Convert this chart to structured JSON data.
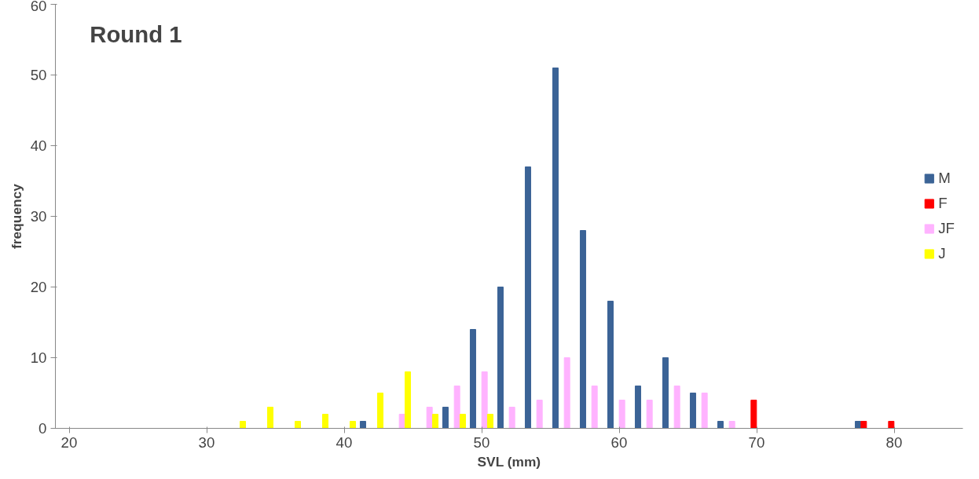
{
  "chart_data": {
    "type": "bar",
    "title": "Round 1",
    "xlabel": "SVL (mm)",
    "ylabel": "frequency",
    "xlim": [
      19,
      85
    ],
    "xticks": [
      20,
      30,
      40,
      50,
      60,
      70,
      80
    ],
    "ylim": [
      0,
      60
    ],
    "yticks": [
      0,
      10,
      20,
      30,
      40,
      50,
      60
    ],
    "grid": false,
    "legend": "right",
    "series": [
      {
        "name": "M",
        "color": "#3b6396",
        "x": [
          42,
          48,
          50,
          52,
          54,
          56,
          58,
          60,
          62,
          64,
          66,
          68,
          78
        ],
        "values": [
          1,
          3,
          14,
          20,
          37,
          51,
          28,
          18,
          6,
          10,
          5,
          1,
          1
        ]
      },
      {
        "name": "F",
        "color": "#ff0000",
        "x": [
          70,
          78,
          80
        ],
        "values": [
          4,
          1,
          1
        ]
      },
      {
        "name": "JF",
        "color": "#ffb3ff",
        "x": [
          44,
          46,
          48,
          50,
          52,
          54,
          56,
          58,
          60,
          62,
          64,
          66,
          68
        ],
        "values": [
          2,
          3,
          6,
          8,
          3,
          4,
          10,
          6,
          4,
          4,
          6,
          5,
          1
        ]
      },
      {
        "name": "J",
        "color": "#ffff00",
        "x": [
          32,
          34,
          36,
          38,
          40,
          42,
          44,
          46,
          48,
          50
        ],
        "values": [
          1,
          3,
          1,
          2,
          1,
          5,
          8,
          2,
          2,
          2
        ]
      }
    ]
  }
}
